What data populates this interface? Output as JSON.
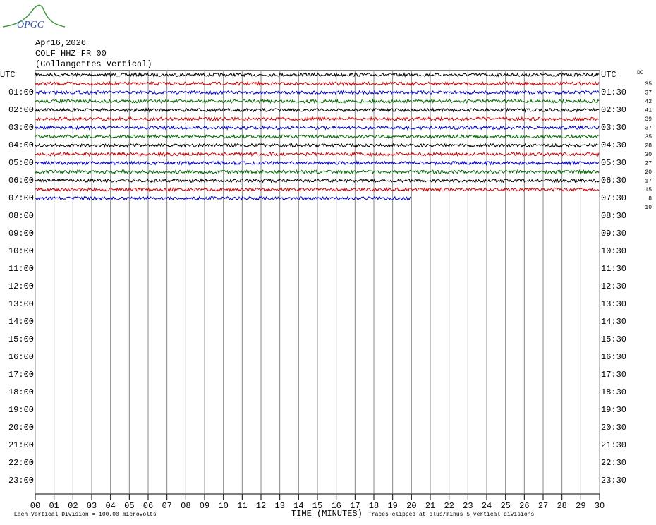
{
  "logo": "OPGC",
  "chart_data": {
    "type": "helicorder",
    "header": [
      "Apr16,2026",
      "COLF HHZ FR 00",
      "(Collangettes Vertical)"
    ],
    "left_labels": [
      "UTC",
      "01:00",
      "02:00",
      "03:00",
      "04:00",
      "05:00",
      "06:00",
      "07:00",
      "08:00",
      "09:00",
      "10:00",
      "11:00",
      "12:00",
      "13:00",
      "14:00",
      "15:00",
      "16:00",
      "17:00",
      "18:00",
      "19:00",
      "20:00",
      "21:00",
      "22:00",
      "23:00"
    ],
    "right_labels": [
      "UTC",
      "01:30",
      "02:30",
      "03:30",
      "04:30",
      "05:30",
      "06:30",
      "07:30",
      "08:30",
      "09:30",
      "10:30",
      "11:30",
      "12:30",
      "13:30",
      "14:30",
      "15:30",
      "16:30",
      "17:30",
      "18:30",
      "19:30",
      "20:30",
      "21:30",
      "22:30",
      "23:30"
    ],
    "xlim": [
      0,
      30
    ],
    "xticks": [
      {
        "value": 0,
        "label": "00"
      },
      {
        "value": 1,
        "label": "01"
      },
      {
        "value": 2,
        "label": "02"
      },
      {
        "value": 3,
        "label": "03"
      },
      {
        "value": 4,
        "label": "04"
      },
      {
        "value": 5,
        "label": "05"
      },
      {
        "value": 6,
        "label": "06"
      },
      {
        "value": 7,
        "label": "07"
      },
      {
        "value": 8,
        "label": "08"
      },
      {
        "value": 9,
        "label": "09"
      },
      {
        "value": 10,
        "label": "10"
      },
      {
        "value": 11,
        "label": "11"
      },
      {
        "value": 12,
        "label": "12"
      },
      {
        "value": 13,
        "label": "13"
      },
      {
        "value": 14,
        "label": "14"
      },
      {
        "value": 15,
        "label": "15"
      },
      {
        "value": 16,
        "label": "16"
      },
      {
        "value": 17,
        "label": "17"
      },
      {
        "value": 18,
        "label": "18"
      },
      {
        "value": 19,
        "label": "19"
      },
      {
        "value": 20,
        "label": "20"
      },
      {
        "value": 21,
        "label": "21"
      },
      {
        "value": 22,
        "label": "22"
      },
      {
        "value": 23,
        "label": "23"
      },
      {
        "value": 24,
        "label": "24"
      },
      {
        "value": 25,
        "label": "25"
      },
      {
        "value": 26,
        "label": "26"
      },
      {
        "value": 27,
        "label": "27"
      },
      {
        "value": 28,
        "label": "28"
      },
      {
        "value": 29,
        "label": "29"
      },
      {
        "value": 30,
        "label": "30"
      }
    ],
    "xlabel": "TIME (MINUTES)",
    "dc_label": "DC",
    "dc_values": [
      35,
      37,
      42,
      41,
      39,
      37,
      35,
      28,
      30,
      27,
      20,
      17,
      15,
      8,
      10
    ],
    "trace_colors": [
      "#000000",
      "#cc0000",
      "#0000cc",
      "#006600"
    ],
    "last_trace_end": 20,
    "footer_left": "Each Vertical Division =  100.00 microvolts",
    "footer_right": "Traces clipped at plus/minus 5 vertical divisions"
  }
}
